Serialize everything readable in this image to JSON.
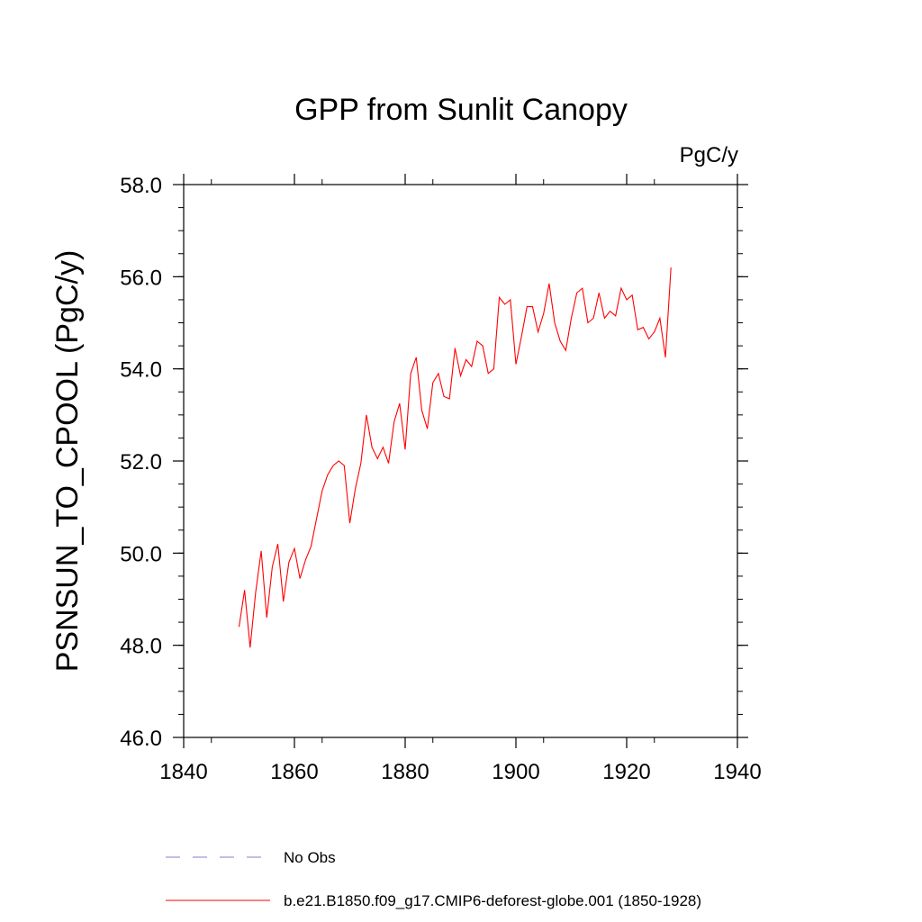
{
  "chart_data": {
    "type": "line",
    "title": "GPP from Sunlit Canopy",
    "units": "PgC/y",
    "ylabel": "PSNSUN_TO_CPOOL  (PgC/y)",
    "xlabel": "",
    "xlim": [
      1840,
      1940
    ],
    "ylim": [
      46.0,
      58.0
    ],
    "x_ticks": [
      "1840",
      "1860",
      "1880",
      "1900",
      "1920",
      "1940"
    ],
    "y_ticks": [
      "46.0",
      "48.0",
      "50.0",
      "52.0",
      "54.0",
      "56.0",
      "58.0"
    ],
    "grid": false,
    "legend_position": "bottom",
    "series": [
      {
        "name": "No Obs",
        "color": "#7f7fd0",
        "dashed": true,
        "x": [],
        "values": []
      },
      {
        "name": "b.e21.B1850.f09_g17.CMIP6-deforest-globe.001 (1850-1928)",
        "color": "#ff0000",
        "dashed": false,
        "x": [
          1850,
          1851,
          1852,
          1853,
          1854,
          1855,
          1856,
          1857,
          1858,
          1859,
          1860,
          1861,
          1862,
          1863,
          1864,
          1865,
          1866,
          1867,
          1868,
          1869,
          1870,
          1871,
          1872,
          1873,
          1874,
          1875,
          1876,
          1877,
          1878,
          1879,
          1880,
          1881,
          1882,
          1883,
          1884,
          1885,
          1886,
          1887,
          1888,
          1889,
          1890,
          1891,
          1892,
          1893,
          1894,
          1895,
          1896,
          1897,
          1898,
          1899,
          1900,
          1901,
          1902,
          1903,
          1904,
          1905,
          1906,
          1907,
          1908,
          1909,
          1910,
          1911,
          1912,
          1913,
          1914,
          1915,
          1916,
          1917,
          1918,
          1919,
          1920,
          1921,
          1922,
          1923,
          1924,
          1925,
          1926,
          1927,
          1928
        ],
        "values": [
          48.4,
          49.2,
          47.95,
          49.15,
          50.05,
          48.6,
          49.7,
          50.2,
          48.95,
          49.8,
          50.1,
          49.45,
          49.85,
          50.15,
          50.75,
          51.35,
          51.7,
          51.9,
          52.0,
          51.9,
          50.65,
          51.4,
          51.95,
          53.0,
          52.3,
          52.05,
          52.3,
          51.95,
          52.85,
          53.25,
          52.25,
          53.9,
          54.25,
          53.1,
          52.7,
          53.7,
          53.9,
          53.4,
          53.35,
          54.45,
          53.85,
          54.2,
          54.05,
          54.6,
          54.5,
          53.9,
          54.0,
          55.55,
          55.4,
          55.5,
          54.1,
          54.7,
          55.35,
          55.35,
          54.8,
          55.2,
          55.85,
          55.0,
          54.6,
          54.4,
          55.1,
          55.65,
          55.75,
          55.0,
          55.1,
          55.65,
          55.1,
          55.25,
          55.15,
          55.75,
          55.5,
          55.6,
          54.85,
          54.9,
          54.65,
          54.8,
          55.1,
          54.25,
          56.2
        ]
      }
    ]
  }
}
